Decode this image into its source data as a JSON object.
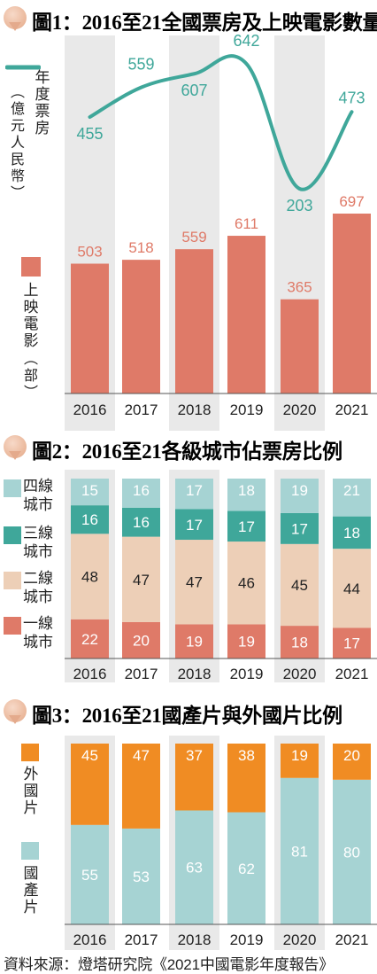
{
  "colors": {
    "band": "#e9e9e9",
    "bar_screens": "#df7a68",
    "line_box_office": "#3fa79a",
    "tier1": "#df7a68",
    "tier2": "#edcfb7",
    "tier3": "#3fa79a",
    "tier4": "#a6d3d3",
    "foreign": "#f08c23",
    "domestic": "#a6d3d3"
  },
  "chart1": {
    "title": "圖1：2016至21全國票房及上映電影數量",
    "line_legend": "年度票房",
    "line_legend_unit": "（億元人民幣）",
    "bar_legend": "上映電影",
    "bar_legend_unit": "（部）"
  },
  "chart2": {
    "title": "圖2：2016至21各級城市佔票房比例",
    "legend": [
      "四線城市",
      "三線城市",
      "二線城市",
      "一線城市"
    ]
  },
  "chart3": {
    "title": "圖3：2016至21國產片與外國片比例",
    "legend": [
      "外國片",
      "國產片"
    ]
  },
  "source": "資料來源：燈塔研究院《2021中國電影年度報告》",
  "chart_data": [
    {
      "type": "bar",
      "title": "圖1：2016至21全國票房及上映電影數量",
      "categories": [
        "2016",
        "2017",
        "2018",
        "2019",
        "2020",
        "2021"
      ],
      "series": [
        {
          "name": "上映電影（部）",
          "type": "bar",
          "values": [
            503,
            518,
            559,
            611,
            365,
            697
          ]
        },
        {
          "name": "年度票房（億元人民幣）",
          "type": "line",
          "values": [
            455,
            559,
            607,
            642,
            203,
            473
          ]
        }
      ]
    },
    {
      "type": "bar",
      "stacked": true,
      "title": "圖2：2016至21各級城市佔票房比例",
      "categories": [
        "2016",
        "2017",
        "2018",
        "2019",
        "2020",
        "2021"
      ],
      "series": [
        {
          "name": "一線城市",
          "values": [
            22,
            20,
            19,
            19,
            18,
            17
          ]
        },
        {
          "name": "二線城市",
          "values": [
            48,
            47,
            47,
            46,
            45,
            44
          ]
        },
        {
          "name": "三線城市",
          "values": [
            16,
            16,
            17,
            17,
            17,
            18
          ]
        },
        {
          "name": "四線城市",
          "values": [
            15,
            16,
            17,
            18,
            19,
            21
          ]
        }
      ]
    },
    {
      "type": "bar",
      "stacked": true,
      "title": "圖3：2016至21國產片與外國片比例",
      "categories": [
        "2016",
        "2017",
        "2018",
        "2019",
        "2020",
        "2021"
      ],
      "series": [
        {
          "name": "國產片",
          "values": [
            55,
            53,
            63,
            62,
            81,
            80
          ]
        },
        {
          "name": "外國片",
          "values": [
            45,
            47,
            37,
            38,
            19,
            20
          ]
        }
      ]
    }
  ]
}
